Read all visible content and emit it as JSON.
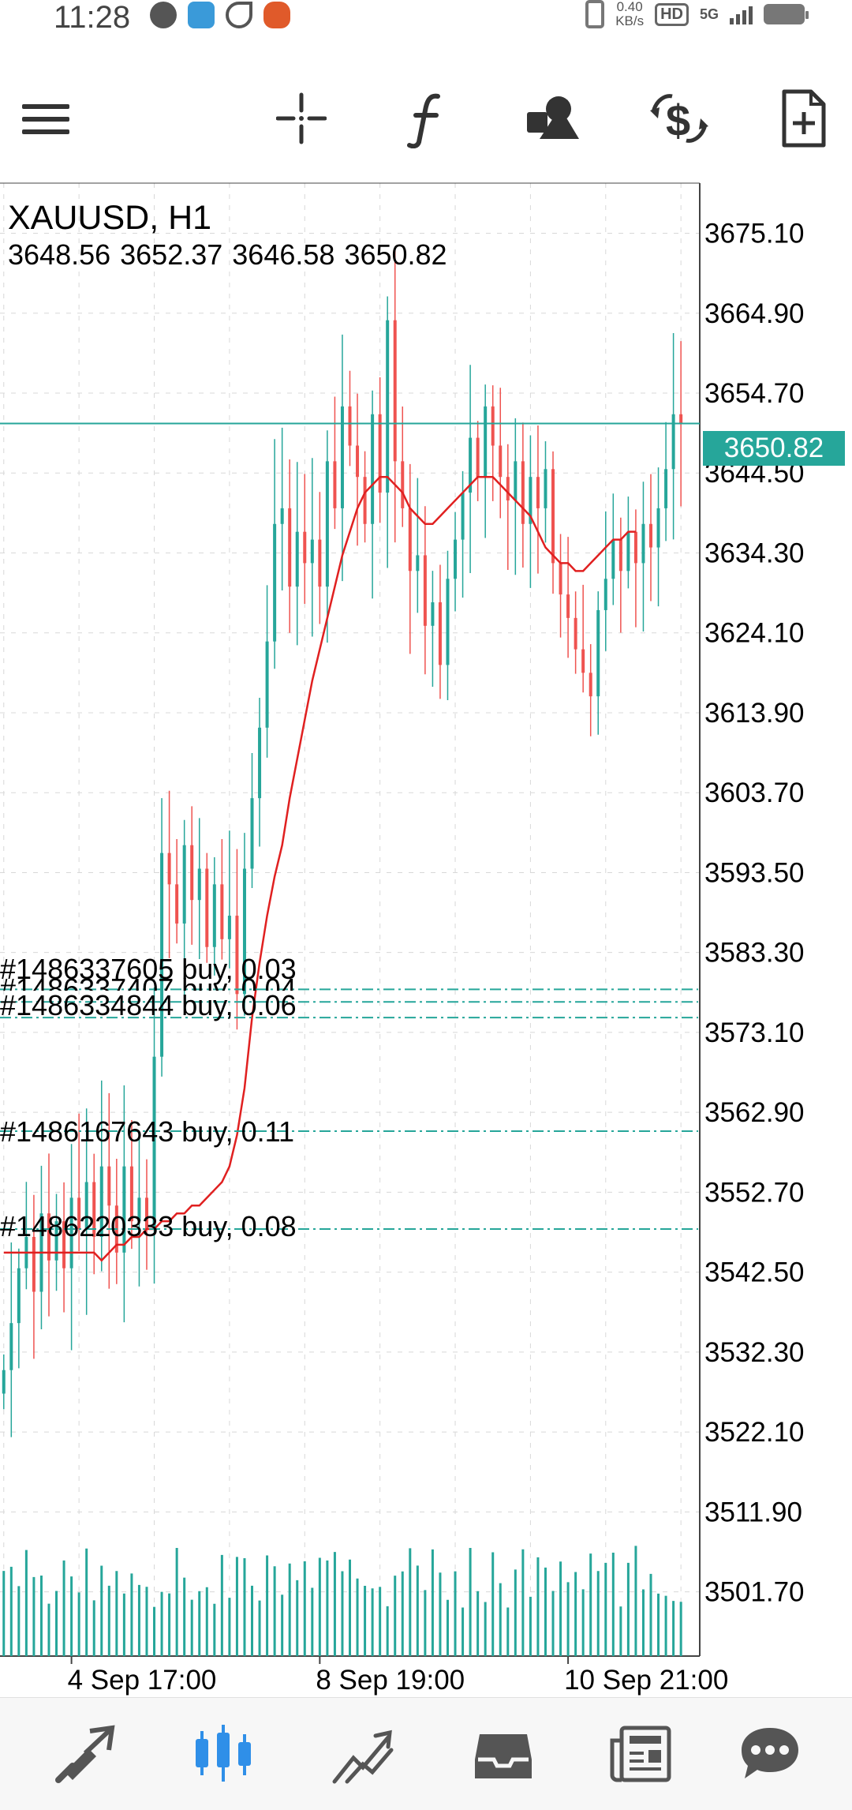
{
  "status_bar": {
    "time": "11:28",
    "net_speed_value": "0.40",
    "net_speed_unit": "KB/s",
    "hd_label": "HD",
    "signal_label": "5G"
  },
  "toolbar": {
    "icons": [
      "menu-icon",
      "crosshair-icon",
      "indicators-icon",
      "objects-icon",
      "trade-icon",
      "new-order-icon"
    ]
  },
  "chart_header": {
    "symbol_timeframe": "XAUUSD, H1",
    "ohlc": [
      "3648.56",
      "3652.37",
      "3646.58",
      "3650.82"
    ]
  },
  "colors": {
    "bull": "#26a69a",
    "bear": "#ef5350",
    "ma": "#e02020",
    "accent": "#26a69a"
  },
  "chart_data": {
    "type": "candlestick",
    "symbol": "XAUUSD",
    "timeframe": "H1",
    "current_price": "3650.82",
    "ylim": [
      3493.5,
      3681.5
    ],
    "y_ticks": [
      "3675.10",
      "3664.90",
      "3654.70",
      "3644.50",
      "3634.30",
      "3624.10",
      "3613.90",
      "3603.70",
      "3593.50",
      "3583.30",
      "3573.10",
      "3562.90",
      "3552.70",
      "3542.50",
      "3532.30",
      "3522.10",
      "3511.90",
      "3501.70"
    ],
    "x_ticks": [
      "4 Sep 17:00",
      "8 Sep 19:00",
      "10 Sep 21:00"
    ],
    "x_tick_index": [
      9,
      42,
      75
    ],
    "bars_visible": 93,
    "close_path": [
      3530,
      3536,
      3543,
      3547,
      3540,
      3550,
      3544,
      3549,
      3543,
      3552,
      3548,
      3554,
      3547,
      3556,
      3551,
      3545,
      3556,
      3549,
      3552,
      3548,
      3570,
      3596,
      3592,
      3587,
      3597,
      3590,
      3594,
      3584,
      3592,
      3585,
      3588,
      3578,
      3594,
      3603,
      3612,
      3623,
      3638,
      3640,
      3630,
      3637,
      3633,
      3636,
      3630,
      3646,
      3640,
      3653,
      3648,
      3644,
      3638,
      3652,
      3642,
      3664,
      3646,
      3640,
      3632,
      3634,
      3625,
      3628,
      3620,
      3631,
      3636,
      3642,
      3649,
      3644,
      3653,
      3648,
      3644,
      3641,
      3646,
      3638,
      3644,
      3640,
      3645,
      3633,
      3629,
      3626,
      3622,
      3619,
      3616,
      3627,
      3631,
      3636,
      3632,
      3637,
      3633,
      3638,
      3635,
      3640,
      3645,
      3652,
      3650.82
    ],
    "ma_path": [
      3545,
      3544,
      3545,
      3546,
      3546,
      3547,
      3547,
      3548,
      3548,
      3549,
      3549,
      3550,
      3550,
      3551,
      3551,
      3552,
      3553,
      3554,
      3556,
      3560,
      3566,
      3575,
      3582,
      3588,
      3593,
      3597,
      3603,
      3608,
      3613,
      3618,
      3622,
      3626,
      3630,
      3634,
      3637,
      3640,
      3642,
      3643,
      3644,
      3644,
      3643,
      3642,
      3640,
      3639,
      3638,
      3638,
      3639,
      3640,
      3641,
      3642,
      3643,
      3644,
      3644,
      3644,
      3643,
      3642,
      3641,
      3640,
      3639,
      3637,
      3635,
      3634,
      3633,
      3633,
      3632,
      3632,
      3633,
      3634,
      3635,
      3636,
      3636,
      3637,
      3637
    ],
    "orders": [
      {
        "label": "#1486337605 buy, 0.03",
        "price": 3578.6
      },
      {
        "label": "#1486337407 buy, 0.04",
        "price": 3577.0
      },
      {
        "label": "#1486334844 buy, 0.06",
        "price": 3575.0
      },
      {
        "label": "#1486167643 buy, 0.11",
        "price": 3560.5
      },
      {
        "label": "#1486220333 buy, 0.08",
        "price": 3548.0
      }
    ]
  },
  "bottom_nav": {
    "items": [
      "quotes-icon",
      "chart-icon",
      "trade-icon",
      "history-icon",
      "news-icon",
      "chat-icon"
    ]
  }
}
